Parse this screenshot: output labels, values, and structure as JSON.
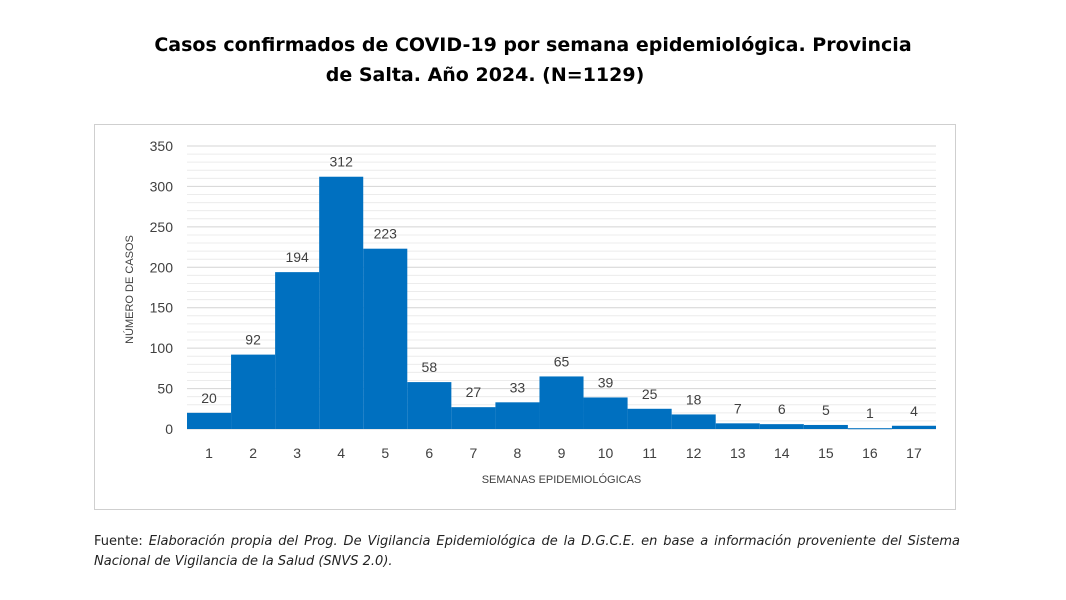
{
  "title_line1": "Casos confirmados de COVID-19 por semana epidemiológica. Provincia",
  "title_line2": "de Salta. Año 2024. (N=1129)",
  "source_lead": "Fuente: ",
  "source_text": "Elaboración propia del Prog. De Vigilancia Epidemiológica de la D.G.C.E. en base a información proveniente del Sistema Nacional de Vigilancia de la Salud (SNVS 2.0).",
  "chart_data": {
    "type": "bar",
    "title": "Casos confirmados de COVID-19 por semana epidemiológica. Provincia de Salta. Año 2024. (N=1129)",
    "xlabel": "SEMANAS EPIDEMIOLÓGICAS",
    "ylabel": "NÚMERO DE CASOS",
    "categories": [
      "1",
      "2",
      "3",
      "4",
      "5",
      "6",
      "7",
      "8",
      "9",
      "10",
      "11",
      "12",
      "13",
      "14",
      "15",
      "16",
      "17"
    ],
    "values": [
      20,
      92,
      194,
      312,
      223,
      58,
      27,
      33,
      65,
      39,
      25,
      18,
      7,
      6,
      5,
      1,
      4
    ],
    "ylim": [
      0,
      350
    ],
    "yticks": [
      0,
      50,
      100,
      150,
      200,
      250,
      300,
      350
    ],
    "grid": true,
    "bar_color": "#0070c0",
    "data_labels": true
  }
}
